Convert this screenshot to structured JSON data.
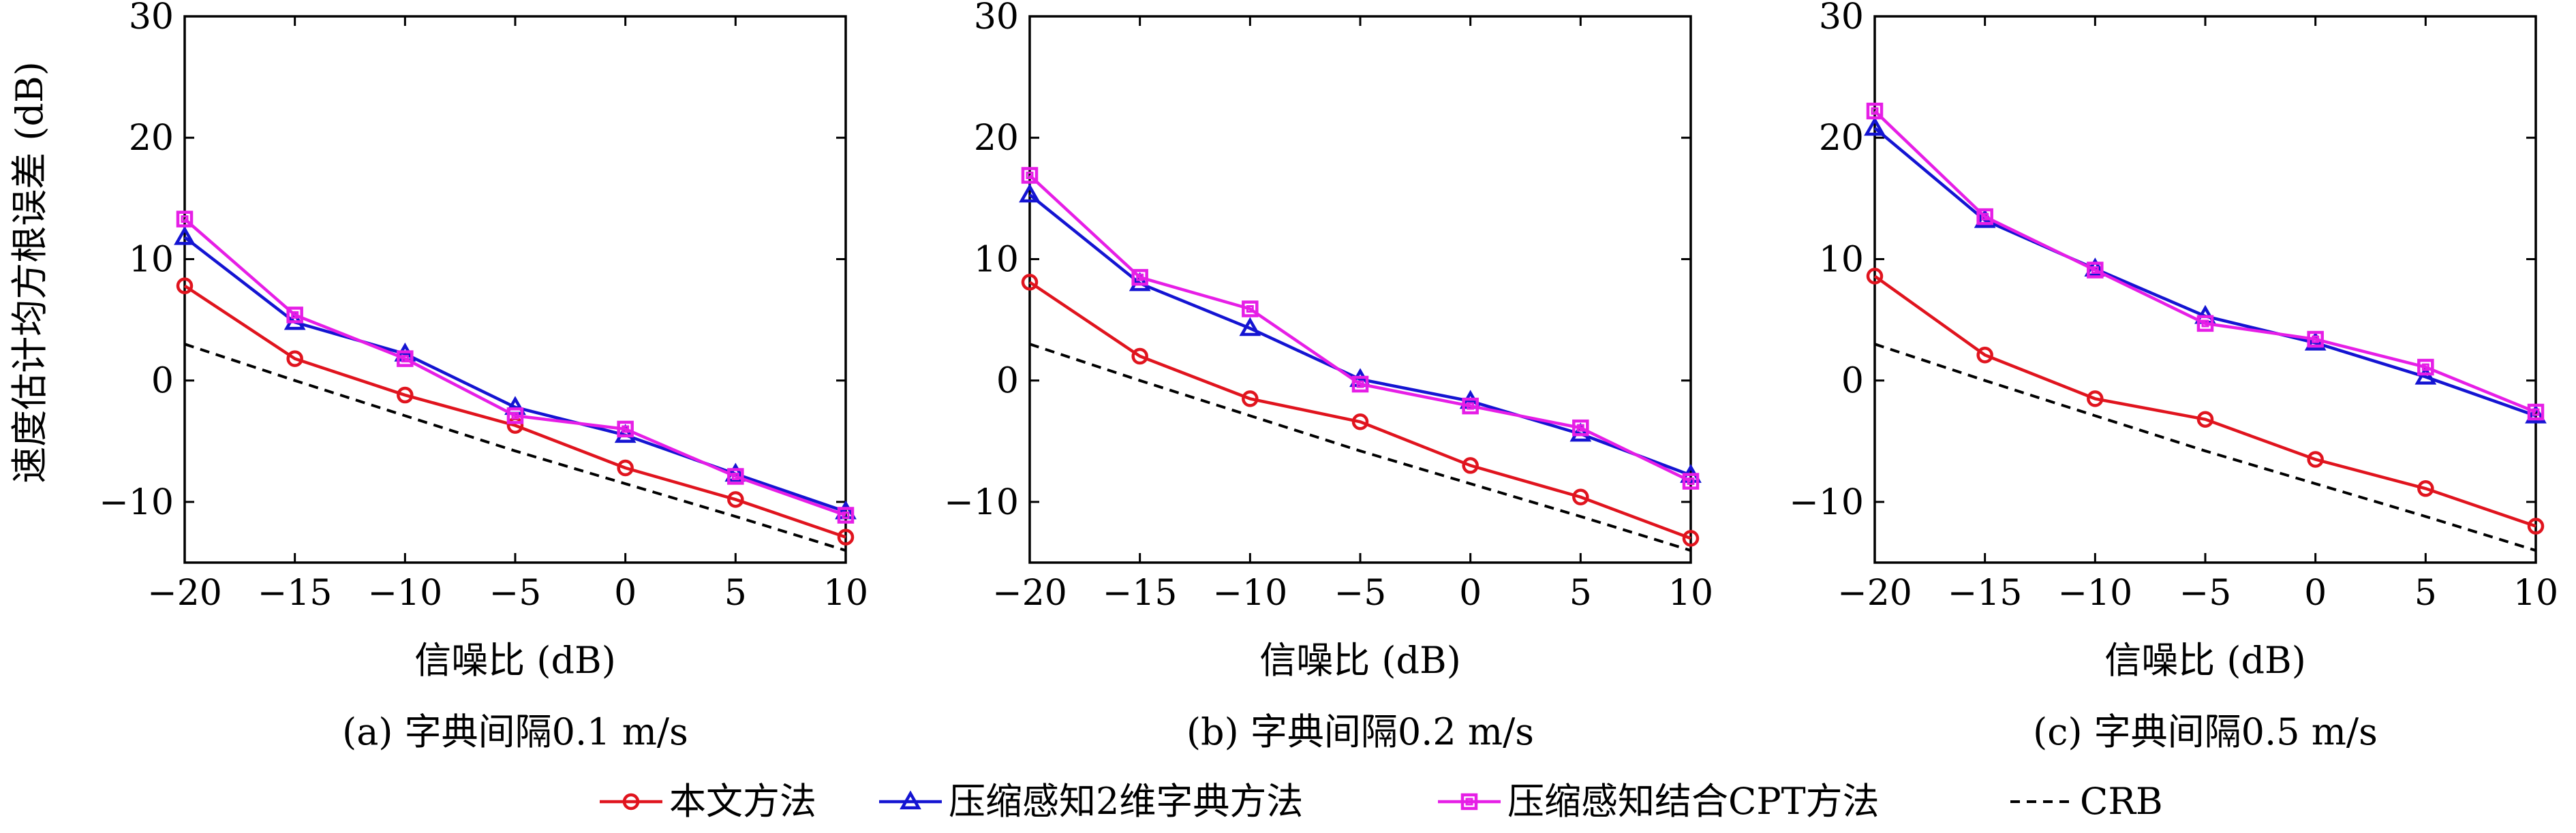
{
  "ylabel": "速度估计均方根误差 (dB)",
  "legend": {
    "position": "bottom",
    "items": [
      {
        "label": "本文方法",
        "color": "#e0141e",
        "marker": "circle",
        "dash": "solid"
      },
      {
        "label": "压缩感知2维字典方法",
        "color": "#1414d2",
        "marker": "triangle",
        "dash": "solid"
      },
      {
        "label": "压缩感知结合CPT方法",
        "color": "#e61ee6",
        "marker": "square",
        "dash": "solid"
      },
      {
        "label": "CRB",
        "color": "#000000",
        "marker": "none",
        "dash": "dashed"
      }
    ]
  },
  "chart_data": [
    {
      "type": "line",
      "caption": "(a) 字典间隔0.1 m/s",
      "xlabel": "信噪比 (dB)",
      "ylabel": "速度估计均方根误差 (dB)",
      "xlim": [
        -20,
        10
      ],
      "ylim": [
        -15,
        30
      ],
      "xticks": [
        "−20",
        "−15",
        "−10",
        "−5",
        "0",
        "5",
        "10"
      ],
      "yticks": [
        "−10",
        "0",
        "10",
        "20",
        "30"
      ],
      "grid": false,
      "x": [
        -20,
        -15,
        -10,
        -5,
        0,
        5,
        10
      ],
      "series": [
        {
          "name": "本文方法",
          "values": [
            7.8,
            1.8,
            -1.2,
            -3.7,
            -7.2,
            -9.8,
            -12.9
          ]
        },
        {
          "name": "压缩感知2维字典方法",
          "values": [
            11.8,
            4.8,
            2.2,
            -2.2,
            -4.5,
            -7.7,
            -10.8
          ]
        },
        {
          "name": "压缩感知结合CPT方法",
          "values": [
            13.3,
            5.4,
            1.8,
            -2.9,
            -4.0,
            -7.9,
            -11.1
          ]
        },
        {
          "name": "CRB",
          "values": [
            3.0,
            0.0,
            -2.9,
            -5.8,
            -8.5,
            -11.2,
            -14.0
          ]
        }
      ]
    },
    {
      "type": "line",
      "caption": "(b) 字典间隔0.2 m/s",
      "xlabel": "信噪比 (dB)",
      "xlim": [
        -20,
        10
      ],
      "ylim": [
        -15,
        30
      ],
      "xticks": [
        "−20",
        "−15",
        "−10",
        "−5",
        "0",
        "5",
        "10"
      ],
      "yticks": [
        "−10",
        "0",
        "10",
        "20",
        "30"
      ],
      "grid": false,
      "x": [
        -20,
        -15,
        -10,
        -5,
        0,
        5,
        10
      ],
      "series": [
        {
          "name": "本文方法",
          "values": [
            8.1,
            2.0,
            -1.5,
            -3.4,
            -7.0,
            -9.6,
            -13.0
          ]
        },
        {
          "name": "压缩感知2维字典方法",
          "values": [
            15.3,
            8.0,
            4.3,
            0.1,
            -1.7,
            -4.4,
            -7.8
          ]
        },
        {
          "name": "压缩感知结合CPT方法",
          "values": [
            16.9,
            8.5,
            5.9,
            -0.3,
            -2.1,
            -3.9,
            -8.3
          ]
        },
        {
          "name": "CRB",
          "values": [
            3.0,
            0.0,
            -2.9,
            -5.8,
            -8.5,
            -11.2,
            -14.0
          ]
        }
      ]
    },
    {
      "type": "line",
      "caption": "(c) 字典间隔0.5 m/s",
      "xlabel": "信噪比 (dB)",
      "xlim": [
        -20,
        10
      ],
      "ylim": [
        -15,
        30
      ],
      "xticks": [
        "−20",
        "−15",
        "−10",
        "−5",
        "0",
        "5",
        "10"
      ],
      "yticks": [
        "−10",
        "0",
        "10",
        "20",
        "30"
      ],
      "grid": false,
      "x": [
        -20,
        -15,
        -10,
        -5,
        0,
        5,
        10
      ],
      "series": [
        {
          "name": "本文方法",
          "values": [
            8.6,
            2.1,
            -1.5,
            -3.2,
            -6.5,
            -8.9,
            -12.0
          ]
        },
        {
          "name": "压缩感知2维字典方法",
          "values": [
            20.8,
            13.2,
            9.2,
            5.3,
            3.1,
            0.3,
            -2.9
          ]
        },
        {
          "name": "压缩感知结合CPT方法",
          "values": [
            22.2,
            13.5,
            9.1,
            4.7,
            3.4,
            1.1,
            -2.6
          ]
        },
        {
          "name": "CRB",
          "values": [
            3.0,
            0.0,
            -2.9,
            -5.8,
            -8.5,
            -11.2,
            -14.0
          ]
        }
      ]
    }
  ]
}
